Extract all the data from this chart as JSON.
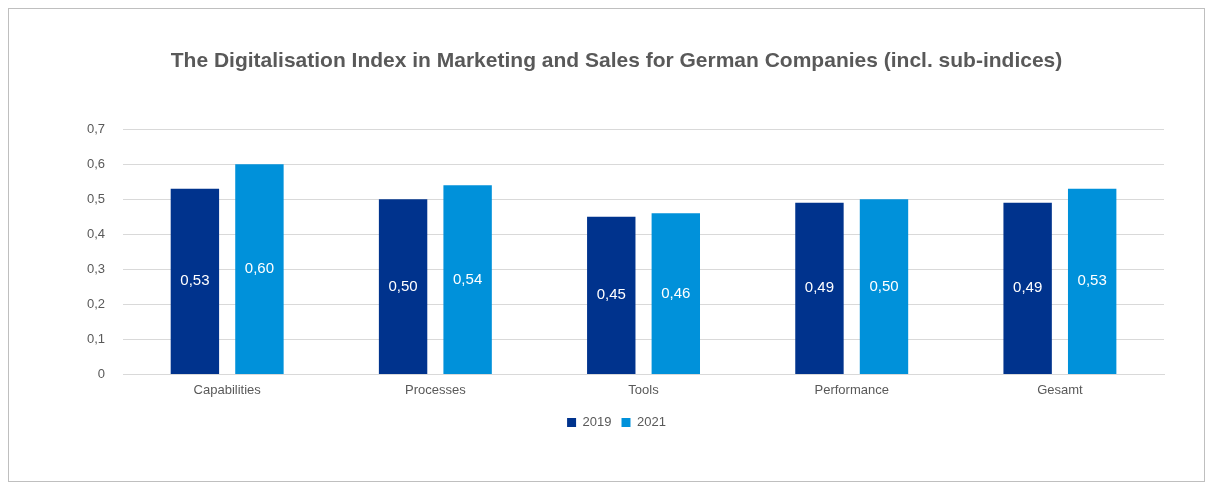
{
  "chart_data": {
    "type": "bar",
    "title": "The Digitalisation Index in Marketing and Sales for German Companies (incl. sub-indices)",
    "categories": [
      "Capabilities",
      "Processes",
      "Tools",
      "Performance",
      "Gesamt"
    ],
    "series": [
      {
        "name": "2019",
        "color": "#00338d",
        "values": [
          0.53,
          0.5,
          0.45,
          0.49,
          0.49
        ],
        "value_labels": [
          "0,53",
          "0,50",
          "0,45",
          "0,49",
          "0,49"
        ]
      },
      {
        "name": "2021",
        "color": "#0091da",
        "values": [
          0.6,
          0.54,
          0.46,
          0.5,
          0.53
        ],
        "value_labels": [
          "0,60",
          "0,54",
          "0,46",
          "0,50",
          "0,53"
        ]
      }
    ],
    "ylim": [
      0,
      0.7
    ],
    "yticks": [
      {
        "value": 0,
        "label": "0"
      },
      {
        "value": 0.1,
        "label": "0,1"
      },
      {
        "value": 0.2,
        "label": "0,2"
      },
      {
        "value": 0.3,
        "label": "0,3"
      },
      {
        "value": 0.4,
        "label": "0,4"
      },
      {
        "value": 0.5,
        "label": "0,5"
      },
      {
        "value": 0.6,
        "label": "0,6"
      },
      {
        "value": 0.7,
        "label": "0,7"
      }
    ],
    "grid": "y",
    "legend": "bottom"
  }
}
